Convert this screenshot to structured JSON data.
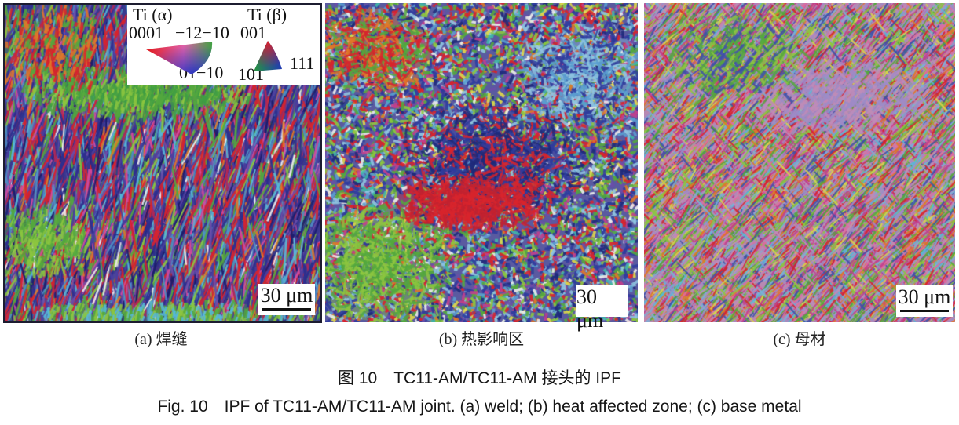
{
  "figure": {
    "caption_zh": "图 10　TC11-AM/TC11-AM 接头的 IPF",
    "caption_en": "Fig. 10　IPF of TC11-AM/TC11-AM joint. (a) weld; (b) heat affected zone; (c) base metal"
  },
  "legend": {
    "alpha": {
      "title": "Ti (α)",
      "corner_top_left": "0001",
      "corner_top_right": "−12−10",
      "corner_bottom": "01−10",
      "colors": {
        "corner_top_left": "#e01818",
        "corner_top_right": "#30a838",
        "corner_bottom": "#2030c8"
      }
    },
    "beta": {
      "title": "Ti (β)",
      "corner_top": "001",
      "corner_bottom_left": "101",
      "corner_bottom_right": "111",
      "colors": {
        "corner_top": "#e01e28",
        "corner_bottom_left": "#28a030",
        "corner_bottom_right": "#2030c0"
      }
    }
  },
  "panels": [
    {
      "id": "a",
      "label": "(a) 焊缝",
      "scale_bar": "30 μm",
      "base": "#39398f",
      "palette": [
        {
          "c": "#2e2f8e",
          "w": 16
        },
        {
          "c": "#4a3fa0",
          "w": 11
        },
        {
          "c": "#6b4ea8",
          "w": 7
        },
        {
          "c": "#d8242d",
          "w": 15
        },
        {
          "c": "#b02858",
          "w": 5
        },
        {
          "c": "#4f8fc4",
          "w": 8
        },
        {
          "c": "#56b8d8",
          "w": 5
        },
        {
          "c": "#54a83e",
          "w": 8
        },
        {
          "c": "#8cc63f",
          "w": 4
        },
        {
          "c": "#e07828",
          "w": 3
        },
        {
          "c": "#ececec",
          "w": 2
        },
        {
          "c": "#d44a9e",
          "w": 4
        },
        {
          "c": "#1d1d6b",
          "w": 5
        }
      ]
    },
    {
      "id": "b",
      "label": "(b) 热影响区",
      "scale_bar": "30 μm",
      "base": "#5a5aa0",
      "palette": [
        {
          "c": "#2f3c9e",
          "w": 15
        },
        {
          "c": "#1f2a7a",
          "w": 6
        },
        {
          "c": "#d8242d",
          "w": 13
        },
        {
          "c": "#8fc4e0",
          "w": 9
        },
        {
          "c": "#5a9ed0",
          "w": 5
        },
        {
          "c": "#54a83e",
          "w": 10
        },
        {
          "c": "#8cc63f",
          "w": 8
        },
        {
          "c": "#6b4ea8",
          "w": 6
        },
        {
          "c": "#c23f8e",
          "w": 5
        },
        {
          "c": "#ececec",
          "w": 4
        },
        {
          "c": "#e0d84a",
          "w": 3
        },
        {
          "c": "#e07828",
          "w": 3
        },
        {
          "c": "#3fb8a8",
          "w": 3
        }
      ]
    },
    {
      "id": "c",
      "label": "(c) 母材",
      "scale_bar": "30 μm",
      "base": "#b78ab2",
      "palette": [
        {
          "c": "#c08cb8",
          "w": 10
        },
        {
          "c": "#9e8cc8",
          "w": 8
        },
        {
          "c": "#c23f8e",
          "w": 10
        },
        {
          "c": "#e06ba0",
          "w": 6
        },
        {
          "c": "#d8242d",
          "w": 8
        },
        {
          "c": "#e07828",
          "w": 6
        },
        {
          "c": "#54a83e",
          "w": 9
        },
        {
          "c": "#8cc63f",
          "w": 9
        },
        {
          "c": "#d8d44a",
          "w": 4
        },
        {
          "c": "#3f51a8",
          "w": 8
        },
        {
          "c": "#7ab0d8",
          "w": 6
        },
        {
          "c": "#56b8d8",
          "w": 3
        }
      ]
    }
  ]
}
